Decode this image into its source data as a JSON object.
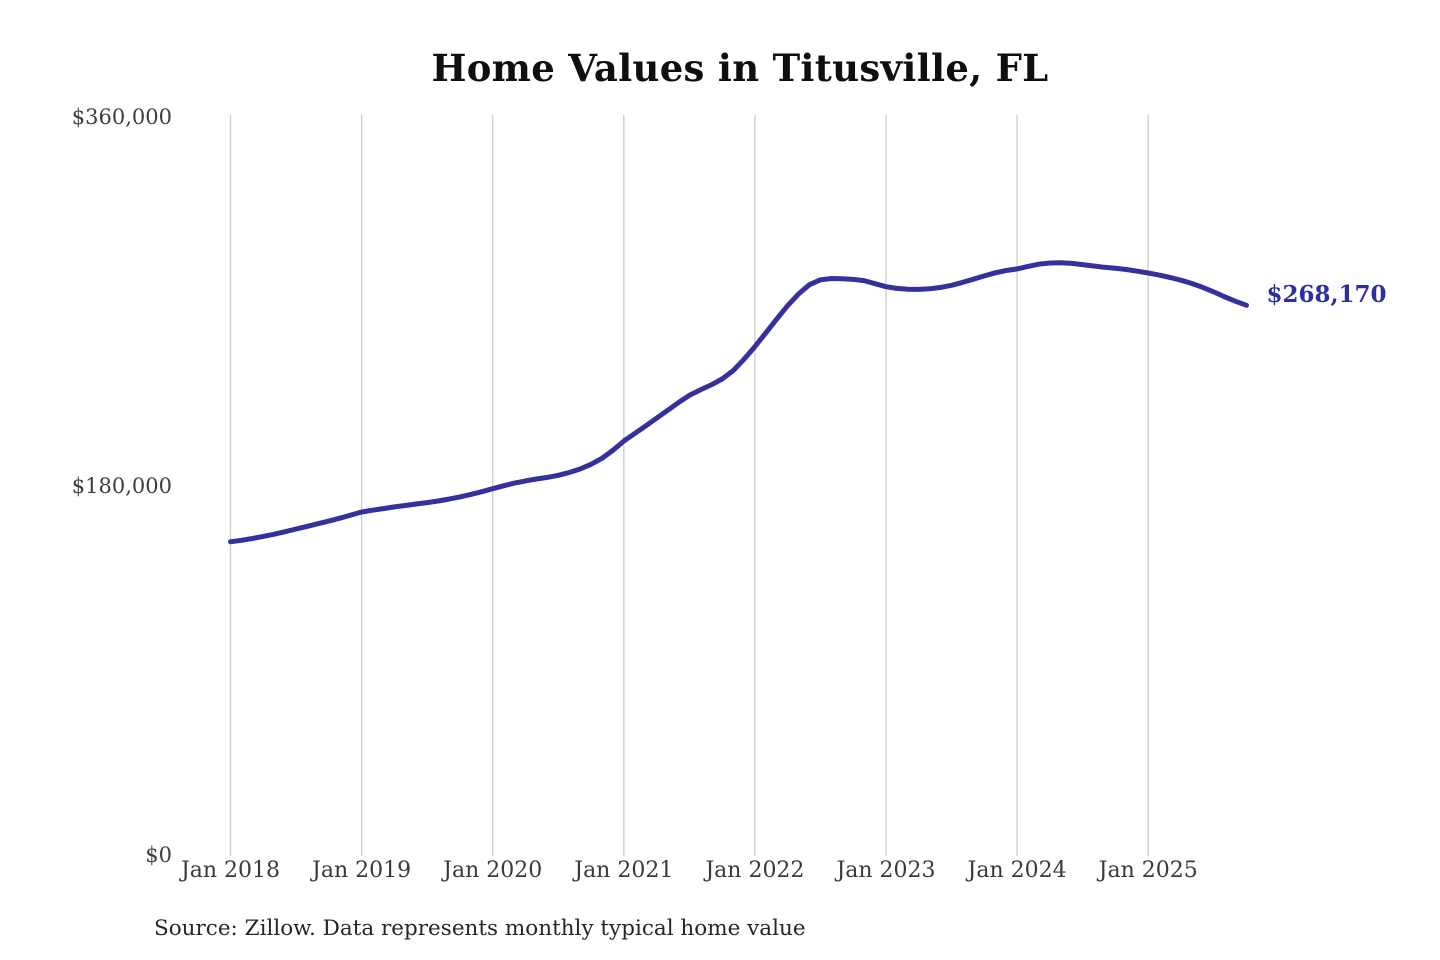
{
  "title": "Home Values in Titusville, FL",
  "source_note": "Source: Zillow. Data represents monthly typical home value",
  "colors": {
    "background": "#ffffff",
    "line": "#36309d",
    "end_label": "#2d2f9e",
    "gridline": "#cdcdcd",
    "title_text": "#0f0f0f",
    "axis_text": "#3a3a3a",
    "source_text": "#262626"
  },
  "chart_data": {
    "type": "line",
    "title": "Home Values in Titusville, FL",
    "xlabel": "",
    "ylabel": "",
    "x_start": "2018-01",
    "x_end": "2025-10",
    "x_frequency": "monthly",
    "x_tick_labels": [
      "Jan 2018",
      "Jan 2019",
      "Jan 2020",
      "Jan 2021",
      "Jan 2022",
      "Jan 2023",
      "Jan 2024",
      "Jan 2025"
    ],
    "y_tick_values": [
      0,
      180000,
      360000
    ],
    "y_tick_labels": [
      "$0",
      "$180,000",
      "$360,000"
    ],
    "ylim": [
      0,
      360000
    ],
    "grid": "vertical-only",
    "legend_position": "none",
    "end_value": 268170,
    "end_value_label": "$268,170",
    "series": [
      {
        "name": "Monthly typical home value",
        "values": [
          152800,
          153500,
          154400,
          155400,
          156500,
          157700,
          159000,
          160300,
          161600,
          162900,
          164300,
          165800,
          167300,
          168200,
          169000,
          169800,
          170500,
          171200,
          171900,
          172700,
          173600,
          174700,
          175900,
          177200,
          178700,
          180100,
          181400,
          182500,
          183400,
          184200,
          185200,
          186600,
          188300,
          190600,
          193500,
          197400,
          201900,
          205600,
          209300,
          213100,
          216900,
          220700,
          224200,
          226900,
          229300,
          232200,
          236200,
          241800,
          248000,
          254700,
          261500,
          268000,
          273700,
          278200,
          280600,
          281200,
          281100,
          280800,
          280200,
          278700,
          277200,
          276400,
          276000,
          275900,
          276200,
          276900,
          277900,
          279300,
          280900,
          282500,
          284000,
          285100,
          285900,
          287100,
          288200,
          288800,
          288900,
          288600,
          288000,
          287300,
          286700,
          286200,
          285600,
          284800,
          283900,
          282900,
          281700,
          280400,
          278800,
          276900,
          274700,
          272300,
          270100,
          268170
        ]
      }
    ]
  }
}
